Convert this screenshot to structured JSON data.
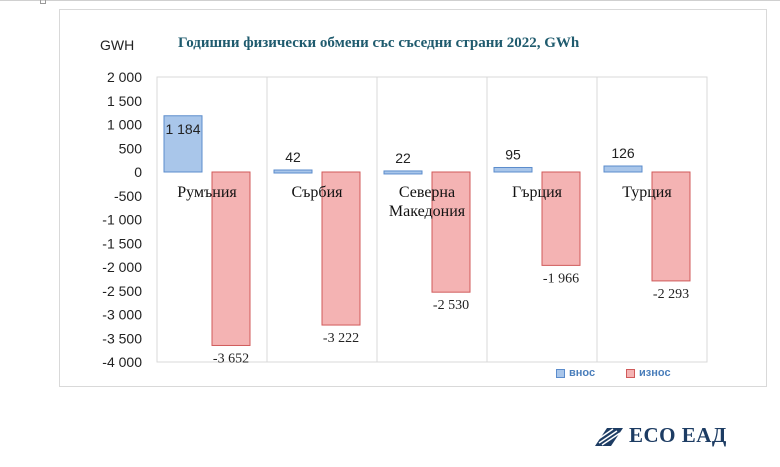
{
  "chart_data": {
    "type": "bar",
    "title": "Годишни физически обмени със съседни страни 2022, GWh",
    "ylabel": "GWH",
    "categories": [
      "Румъния",
      "Сърбия",
      "Северна Македония",
      "Гърция",
      "Турция"
    ],
    "category_lines": [
      [
        "Румъния"
      ],
      [
        "Сърбия"
      ],
      [
        "Северна",
        "Македония"
      ],
      [
        "Гърция"
      ],
      [
        "Турция"
      ]
    ],
    "series": [
      {
        "name": "внос",
        "values": [
          1184,
          42,
          22,
          95,
          126
        ],
        "labels": [
          "1 184",
          "42",
          "22",
          "95",
          "126"
        ],
        "color": "#a9c6ea",
        "stroke": "#5b8ccc"
      },
      {
        "name": "износ",
        "values": [
          -3652,
          -3222,
          -2530,
          -1966,
          -2293
        ],
        "labels": [
          "-3 652",
          "-3 222",
          "-2 530",
          "-1 966",
          "-2 293"
        ],
        "color": "#f4b3b3",
        "stroke": "#d05a5a"
      }
    ],
    "ylim": [
      -4000,
      2000
    ],
    "yticks": [
      2000,
      1500,
      1000,
      500,
      0,
      -500,
      -1000,
      -1500,
      -2000,
      -2500,
      -3000,
      -3500,
      -4000
    ],
    "ytick_labels": [
      "2 000",
      "1 500",
      "1 000",
      "500",
      "0",
      "-500",
      "-1 000",
      "-1 500",
      "-2 000",
      "-2 500",
      "-3 000",
      "-3 500",
      "-4 000"
    ],
    "grid": true,
    "legend_position": "bottom-right"
  },
  "logo": {
    "text": "ECO ЕАД"
  }
}
